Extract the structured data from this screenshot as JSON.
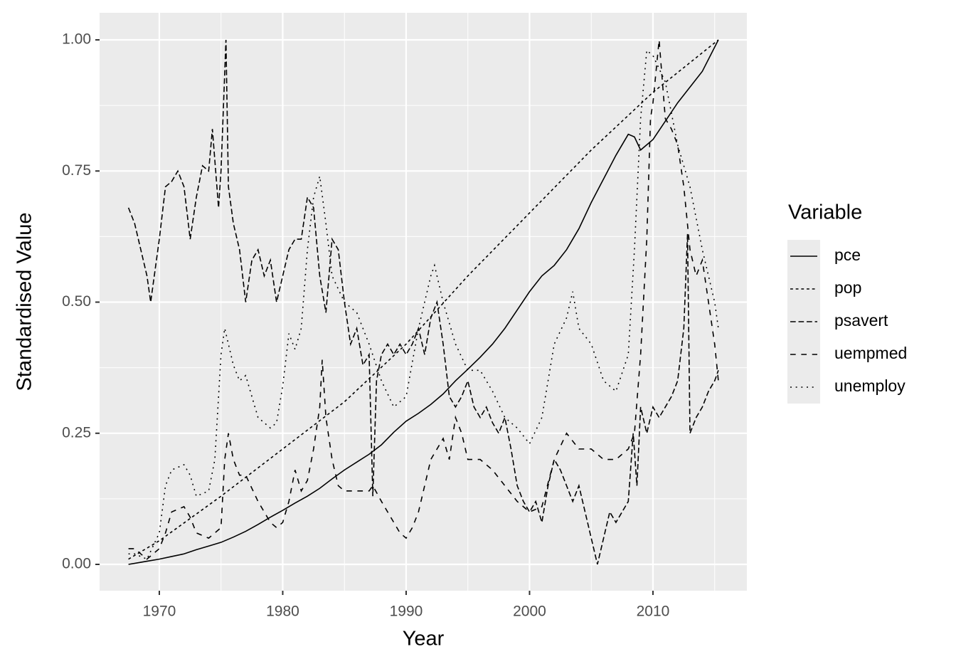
{
  "chart_data": {
    "type": "line",
    "x_label": "Year",
    "y_label": "Standardised Value",
    "legend_title": "Variable",
    "legend": "right",
    "xlim": [
      1965.16,
      2017.61
    ],
    "ylim": [
      -0.0502,
      1.0516
    ],
    "xticks": [
      1970,
      1980,
      1990,
      2000,
      2010
    ],
    "yticks": [
      {
        "value": 0,
        "label": "0.00"
      },
      {
        "value": 0.25,
        "label": "0.25"
      },
      {
        "value": 0.5,
        "label": "0.50"
      },
      {
        "value": 0.75,
        "label": "0.75"
      },
      {
        "value": 1,
        "label": "1.00"
      }
    ],
    "grid": true,
    "minor_grid": true,
    "series": [
      {
        "name": "pce",
        "color": "#000000",
        "linetype": "solid",
        "x": [
          1967.5,
          1968,
          1969,
          1970,
          1971,
          1972,
          1973,
          1974,
          1975,
          1976,
          1977,
          1978,
          1979,
          1980,
          1981,
          1982,
          1983,
          1984,
          1985,
          1986,
          1987,
          1988,
          1989,
          1990,
          1991,
          1992,
          1993,
          1994,
          1995,
          1996,
          1997,
          1998,
          1999,
          2000,
          2001,
          2002,
          2003,
          2004,
          2005,
          2006,
          2007,
          2008,
          2008.5,
          2009,
          2010,
          2011,
          2012,
          2013,
          2014,
          2015.3
        ],
        "values": [
          0,
          0.002,
          0.006,
          0.01,
          0.015,
          0.02,
          0.028,
          0.035,
          0.042,
          0.052,
          0.063,
          0.076,
          0.09,
          0.103,
          0.117,
          0.13,
          0.145,
          0.163,
          0.18,
          0.195,
          0.21,
          0.228,
          0.252,
          0.273,
          0.288,
          0.305,
          0.325,
          0.35,
          0.372,
          0.395,
          0.42,
          0.45,
          0.485,
          0.52,
          0.55,
          0.57,
          0.6,
          0.64,
          0.69,
          0.735,
          0.78,
          0.82,
          0.815,
          0.79,
          0.81,
          0.845,
          0.88,
          0.91,
          0.94,
          1
        ]
      },
      {
        "name": "pop",
        "color": "#000000",
        "linetype": "22",
        "x": [
          1967.5,
          1970,
          1975,
          1980,
          1985,
          1990,
          1995,
          2000,
          2005,
          2010,
          2015.3
        ],
        "values": [
          0.01,
          0.045,
          0.13,
          0.22,
          0.31,
          0.42,
          0.55,
          0.67,
          0.79,
          0.9,
          1
        ]
      },
      {
        "name": "psavert",
        "color": "#000000",
        "linetype": "42",
        "x": [
          1967.5,
          1968,
          1968.5,
          1969,
          1969.3,
          1970,
          1970.5,
          1971,
          1971.5,
          1972,
          1972.5,
          1973,
          1973.5,
          1974,
          1974.3,
          1974.8,
          1975,
          1975.4,
          1975.6,
          1976,
          1976.5,
          1977,
          1977.5,
          1978,
          1978.5,
          1979,
          1979.5,
          1980,
          1980.5,
          1981,
          1981.5,
          1982,
          1982.5,
          1983,
          1983.5,
          1984,
          1984.5,
          1985,
          1985.5,
          1986,
          1986.5,
          1987,
          1987.3,
          1987.6,
          1988,
          1988.5,
          1989,
          1989.5,
          1990,
          1990.5,
          1991,
          1991.5,
          1992,
          1992.5,
          1993,
          1993.5,
          1994,
          1994.5,
          1995,
          1995.5,
          1996,
          1996.5,
          1997,
          1997.5,
          1998,
          1998.5,
          1999,
          1999.5,
          2000,
          2000.5,
          2001,
          2001.5,
          2002,
          2002.5,
          2003,
          2003.5,
          2004,
          2004.5,
          2005,
          2005.5,
          2006,
          2006.5,
          2007,
          2007.5,
          2008,
          2008.4,
          2008.7,
          2009,
          2009.5,
          2010,
          2010.5,
          2011,
          2011.5,
          2012,
          2012.5,
          2012.8,
          2013,
          2013.5,
          2014,
          2014.5,
          2015,
          2015.3
        ],
        "values": [
          0.68,
          0.65,
          0.6,
          0.55,
          0.5,
          0.62,
          0.72,
          0.73,
          0.75,
          0.72,
          0.62,
          0.7,
          0.76,
          0.75,
          0.83,
          0.68,
          0.75,
          1,
          0.72,
          0.65,
          0.6,
          0.5,
          0.58,
          0.6,
          0.55,
          0.58,
          0.5,
          0.55,
          0.6,
          0.62,
          0.62,
          0.7,
          0.68,
          0.55,
          0.48,
          0.62,
          0.6,
          0.5,
          0.42,
          0.45,
          0.38,
          0.4,
          0.13,
          0.35,
          0.4,
          0.42,
          0.4,
          0.42,
          0.4,
          0.42,
          0.45,
          0.4,
          0.47,
          0.5,
          0.42,
          0.32,
          0.3,
          0.32,
          0.35,
          0.3,
          0.28,
          0.3,
          0.27,
          0.25,
          0.28,
          0.22,
          0.15,
          0.12,
          0.1,
          0.12,
          0.08,
          0.15,
          0.2,
          0.18,
          0.15,
          0.12,
          0.15,
          0.1,
          0.05,
          0,
          0.05,
          0.1,
          0.08,
          0.1,
          0.12,
          0.25,
          0.15,
          0.3,
          0.25,
          0.3,
          0.28,
          0.3,
          0.32,
          0.35,
          0.45,
          0.63,
          0.25,
          0.28,
          0.3,
          0.33,
          0.35,
          0.37
        ]
      },
      {
        "name": "uempmed",
        "color": "#000000",
        "linetype": "44",
        "x": [
          1967.5,
          1968,
          1969,
          1970,
          1970.5,
          1971,
          1972,
          1972.5,
          1973,
          1974,
          1975,
          1975.3,
          1975.6,
          1976,
          1976.5,
          1977,
          1978,
          1979,
          1979.5,
          1980,
          1980.5,
          1981,
          1981.5,
          1982,
          1982.5,
          1983,
          1983.2,
          1983.5,
          1984,
          1984.5,
          1985,
          1986,
          1987,
          1987.3,
          1988,
          1989,
          1989.5,
          1990,
          1990.5,
          1991,
          1991.5,
          1992,
          1992.5,
          1993,
          1993.5,
          1994,
          1994.5,
          1995,
          1996,
          1997,
          1998,
          1999,
          2000,
          2001,
          2002,
          2003,
          2004,
          2005,
          2006,
          2007,
          2008,
          2008.5,
          2009,
          2009.5,
          2009.8,
          2010,
          2010.5,
          2011,
          2011.5,
          2012,
          2012.5,
          2013,
          2013.5,
          2014,
          2014.5,
          2015,
          2015.3
        ],
        "values": [
          0.03,
          0.03,
          0.01,
          0.03,
          0.06,
          0.1,
          0.11,
          0.09,
          0.06,
          0.05,
          0.07,
          0.2,
          0.25,
          0.2,
          0.17,
          0.17,
          0.12,
          0.08,
          0.07,
          0.08,
          0.12,
          0.18,
          0.14,
          0.16,
          0.22,
          0.3,
          0.39,
          0.28,
          0.2,
          0.15,
          0.14,
          0.14,
          0.14,
          0.15,
          0.12,
          0.08,
          0.06,
          0.05,
          0.07,
          0.1,
          0.15,
          0.2,
          0.22,
          0.24,
          0.2,
          0.28,
          0.25,
          0.2,
          0.2,
          0.18,
          0.15,
          0.12,
          0.1,
          0.11,
          0.2,
          0.25,
          0.22,
          0.22,
          0.2,
          0.2,
          0.22,
          0.25,
          0.4,
          0.62,
          0.85,
          0.88,
          1,
          0.85,
          0.83,
          0.8,
          0.72,
          0.6,
          0.55,
          0.58,
          0.5,
          0.42,
          0.35
        ]
      },
      {
        "name": "unemploy",
        "color": "#000000",
        "linetype": "13",
        "x": [
          1967.5,
          1968,
          1969,
          1970,
          1970.5,
          1971,
          1972,
          1972.5,
          1973,
          1974,
          1974.5,
          1975,
          1975.3,
          1976,
          1976.5,
          1977,
          1978,
          1979,
          1979.5,
          1980,
          1980.5,
          1981,
          1981.5,
          1982,
          1982.5,
          1983,
          1983.5,
          1984,
          1985,
          1986,
          1987,
          1988,
          1989,
          1990,
          1991,
          1992,
          1992.3,
          1993,
          1994,
          1995,
          1996,
          1997,
          1998,
          1999,
          2000,
          2001,
          2002,
          2003,
          2003.5,
          2004,
          2005,
          2006,
          2007,
          2008,
          2008.5,
          2009,
          2009.5,
          2010,
          2011,
          2012,
          2013,
          2014,
          2015,
          2015.3
        ],
        "values": [
          0.02,
          0.02,
          0.01,
          0.06,
          0.15,
          0.18,
          0.19,
          0.17,
          0.13,
          0.14,
          0.2,
          0.4,
          0.45,
          0.38,
          0.35,
          0.36,
          0.28,
          0.26,
          0.27,
          0.34,
          0.44,
          0.41,
          0.45,
          0.6,
          0.7,
          0.74,
          0.65,
          0.55,
          0.5,
          0.48,
          0.42,
          0.35,
          0.3,
          0.32,
          0.45,
          0.55,
          0.57,
          0.5,
          0.42,
          0.37,
          0.37,
          0.33,
          0.28,
          0.26,
          0.23,
          0.28,
          0.42,
          0.47,
          0.52,
          0.45,
          0.42,
          0.35,
          0.33,
          0.4,
          0.6,
          0.85,
          0.98,
          0.97,
          0.92,
          0.8,
          0.72,
          0.6,
          0.5,
          0.45
        ]
      }
    ]
  }
}
